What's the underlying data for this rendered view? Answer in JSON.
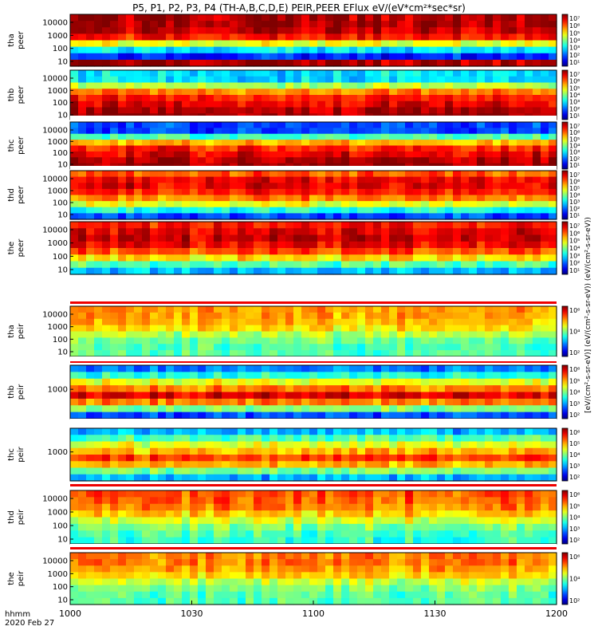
{
  "title": "P5, P1, P2, P3, P4 (TH-A,B,C,D,E) PEIR,PEER EFlux eV/(eV*cm²*sec*sr)",
  "footer": {
    "hhmm": "hhmm",
    "date": "2020 Feb 27"
  },
  "colorbar_label": "[eV/(cm²-s-sr-eV)] (eV/(cm²-s-sr-eV)) (eV/(cm²-s-sr-eV))",
  "chart_data": {
    "type": "heatmap",
    "x_ticks": [
      "1000",
      "1030",
      "1100",
      "1130",
      "1200"
    ],
    "panels": [
      {
        "id": "tha-peer",
        "label1": "tha",
        "label2": "peer",
        "y_ticks": [
          "10000",
          "1000",
          "100",
          "10"
        ],
        "cbar_ticks": [
          "10⁷",
          "10⁶",
          "10⁵",
          "10⁴",
          "10³",
          "10²",
          "10¹"
        ],
        "base": [
          0.95,
          0.95,
          0.92,
          0.85,
          0.6,
          0.35,
          0.15,
          0.95
        ]
      },
      {
        "id": "thb-peer",
        "label1": "thb",
        "label2": "peer",
        "y_ticks": [
          "10000",
          "1000",
          "100",
          "10"
        ],
        "cbar_ticks": [
          "10⁷",
          "10⁶",
          "10⁵",
          "10⁴",
          "10³",
          "10²",
          "10¹"
        ],
        "base": [
          0.35,
          0.35,
          0.55,
          0.75,
          0.85,
          0.9,
          0.95,
          0.98
        ]
      },
      {
        "id": "thc-peer",
        "label1": "thc",
        "label2": "peer",
        "y_ticks": [
          "10000",
          "1000",
          "100",
          "10"
        ],
        "cbar_ticks": [
          "10⁷",
          "10⁶",
          "10⁵",
          "10⁴",
          "10³",
          "10²",
          "10¹"
        ],
        "base": [
          0.2,
          0.2,
          0.45,
          0.7,
          0.85,
          0.9,
          0.95,
          0.98
        ]
      },
      {
        "id": "thd-peer",
        "label1": "thd",
        "label2": "peer",
        "y_ticks": [
          "10000",
          "1000",
          "100",
          "10"
        ],
        "cbar_ticks": [
          "10⁷",
          "10⁶",
          "10⁵",
          "10⁴",
          "10³",
          "10²",
          "10¹"
        ],
        "base": [
          0.8,
          0.9,
          0.9,
          0.85,
          0.75,
          0.6,
          0.4,
          0.2
        ]
      },
      {
        "id": "the-peer",
        "label1": "the",
        "label2": "peer",
        "y_ticks": [
          "10000",
          "1000",
          "100",
          "10"
        ],
        "cbar_ticks": [
          "10⁷",
          "10⁶",
          "10⁵",
          "10⁴",
          "10³",
          "10²",
          "10¹"
        ],
        "base": [
          0.85,
          0.9,
          0.92,
          0.88,
          0.8,
          0.65,
          0.45,
          0.3
        ]
      },
      {
        "id": "tha-peir",
        "label1": "tha",
        "label2": "peir",
        "y_ticks": [
          "10000",
          "1000",
          "100",
          "10"
        ],
        "cbar_ticks": [
          "10⁶",
          "10⁴",
          "10²"
        ],
        "base": [
          0.72,
          0.72,
          0.7,
          0.65,
          0.55,
          0.48,
          0.45,
          0.45
        ]
      },
      {
        "id": "thb-peir",
        "label1": "thb",
        "label2": "peir",
        "y_ticks": [
          "1000"
        ],
        "cbar_ticks": [
          "10⁶",
          "10⁵",
          "10⁴",
          "10³",
          "10²"
        ],
        "base": [
          0.25,
          0.4,
          0.6,
          0.75,
          0.9,
          0.75,
          0.5,
          0.2
        ]
      },
      {
        "id": "thc-peir",
        "label1": "thc",
        "label2": "peir",
        "y_ticks": [
          "1000"
        ],
        "cbar_ticks": [
          "10⁶",
          "10⁵",
          "10⁴",
          "10³",
          "10²"
        ],
        "base": [
          0.3,
          0.45,
          0.6,
          0.7,
          0.82,
          0.7,
          0.5,
          0.3
        ]
      },
      {
        "id": "thd-peir",
        "label1": "thd",
        "label2": "peir",
        "y_ticks": [
          "10000",
          "1000",
          "100",
          "10"
        ],
        "cbar_ticks": [
          "10⁶",
          "10⁵",
          "10⁴",
          "10³",
          "10²"
        ],
        "base": [
          0.8,
          0.78,
          0.75,
          0.68,
          0.58,
          0.5,
          0.45,
          0.42
        ]
      },
      {
        "id": "the-peir",
        "label1": "the",
        "label2": "peir",
        "y_ticks": [
          "10000",
          "1000",
          "100",
          "10"
        ],
        "cbar_ticks": [
          "10⁶",
          "10⁴",
          "10²"
        ],
        "base": [
          0.75,
          0.75,
          0.72,
          0.66,
          0.56,
          0.5,
          0.46,
          0.45
        ]
      }
    ]
  }
}
